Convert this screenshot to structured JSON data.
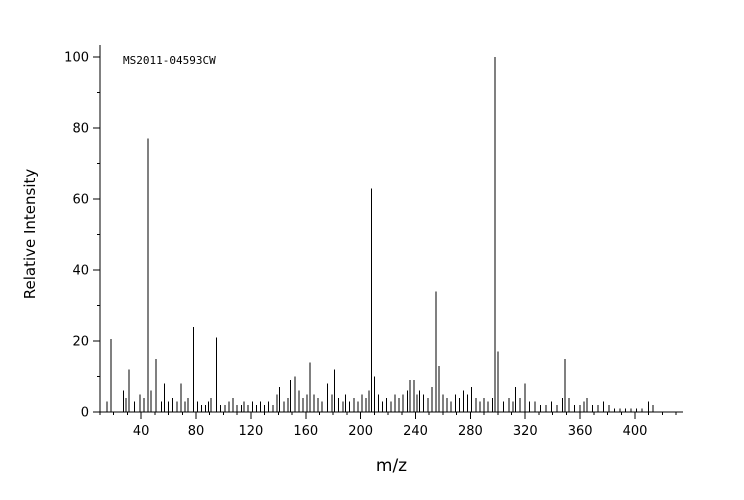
{
  "chart_data": {
    "type": "bar",
    "subtype": "mass-spectrum-sticks",
    "title": "MS2011-04593CW",
    "xlabel": "m/z",
    "ylabel": "Relative Intensity",
    "xlim": [
      10,
      435
    ],
    "ylim": [
      0,
      100
    ],
    "x_ticks_major": [
      40,
      80,
      120,
      160,
      200,
      240,
      280,
      320,
      360,
      400
    ],
    "x_tick_minor_step": 10,
    "y_ticks_major": [
      0,
      20,
      40,
      60,
      80,
      100
    ],
    "y_tick_minor_step": 10,
    "grid": false,
    "legend": null,
    "axis_color": "#000000",
    "peak_color": "#000000",
    "peaks": [
      [
        15,
        3
      ],
      [
        18,
        20.5
      ],
      [
        27,
        6
      ],
      [
        29,
        4
      ],
      [
        31,
        12
      ],
      [
        35,
        3
      ],
      [
        39,
        5
      ],
      [
        42,
        4
      ],
      [
        45,
        77
      ],
      [
        47,
        6
      ],
      [
        51,
        15
      ],
      [
        55,
        3
      ],
      [
        57,
        8
      ],
      [
        60,
        3
      ],
      [
        63,
        4
      ],
      [
        66,
        3
      ],
      [
        69,
        8
      ],
      [
        72,
        3
      ],
      [
        74,
        4
      ],
      [
        78,
        24
      ],
      [
        81,
        3
      ],
      [
        84,
        2
      ],
      [
        87,
        2
      ],
      [
        89,
        3
      ],
      [
        91,
        4
      ],
      [
        95,
        21
      ],
      [
        98,
        2
      ],
      [
        101,
        2
      ],
      [
        104,
        3
      ],
      [
        107,
        4
      ],
      [
        110,
        2
      ],
      [
        113,
        2
      ],
      [
        115,
        3
      ],
      [
        118,
        2
      ],
      [
        121,
        3
      ],
      [
        124,
        2
      ],
      [
        127,
        3
      ],
      [
        130,
        2
      ],
      [
        133,
        3
      ],
      [
        136,
        2
      ],
      [
        139,
        5
      ],
      [
        141,
        7
      ],
      [
        144,
        3
      ],
      [
        147,
        4
      ],
      [
        149,
        9
      ],
      [
        152,
        10
      ],
      [
        155,
        6
      ],
      [
        158,
        4
      ],
      [
        161,
        5
      ],
      [
        163,
        14
      ],
      [
        166,
        5
      ],
      [
        169,
        4
      ],
      [
        172,
        3
      ],
      [
        176,
        8
      ],
      [
        179,
        5
      ],
      [
        181,
        12
      ],
      [
        184,
        4
      ],
      [
        187,
        3
      ],
      [
        189,
        5
      ],
      [
        192,
        3
      ],
      [
        195,
        4
      ],
      [
        198,
        3
      ],
      [
        201,
        5
      ],
      [
        204,
        4
      ],
      [
        206,
        6
      ],
      [
        208,
        63
      ],
      [
        210,
        10
      ],
      [
        213,
        5
      ],
      [
        216,
        3
      ],
      [
        219,
        4
      ],
      [
        222,
        3
      ],
      [
        225,
        5
      ],
      [
        228,
        4
      ],
      [
        231,
        5
      ],
      [
        234,
        6
      ],
      [
        236,
        9
      ],
      [
        239,
        9
      ],
      [
        241,
        5
      ],
      [
        243,
        6
      ],
      [
        246,
        5
      ],
      [
        249,
        4
      ],
      [
        252,
        7
      ],
      [
        255,
        34
      ],
      [
        257,
        13
      ],
      [
        260,
        5
      ],
      [
        263,
        4
      ],
      [
        266,
        3
      ],
      [
        269,
        5
      ],
      [
        272,
        4
      ],
      [
        275,
        6
      ],
      [
        278,
        5
      ],
      [
        281,
        7
      ],
      [
        284,
        4
      ],
      [
        287,
        3
      ],
      [
        290,
        4
      ],
      [
        293,
        3
      ],
      [
        296,
        4
      ],
      [
        298,
        100
      ],
      [
        300,
        17
      ],
      [
        304,
        3
      ],
      [
        308,
        4
      ],
      [
        311,
        3
      ],
      [
        313,
        7
      ],
      [
        316,
        4
      ],
      [
        320,
        8
      ],
      [
        323,
        3
      ],
      [
        327,
        3
      ],
      [
        331,
        2
      ],
      [
        335,
        2
      ],
      [
        339,
        3
      ],
      [
        343,
        2
      ],
      [
        347,
        4
      ],
      [
        349,
        15
      ],
      [
        352,
        4
      ],
      [
        356,
        2
      ],
      [
        360,
        2
      ],
      [
        363,
        3
      ],
      [
        365,
        4
      ],
      [
        369,
        2
      ],
      [
        373,
        2
      ],
      [
        377,
        3
      ],
      [
        381,
        2
      ],
      [
        385,
        1
      ],
      [
        389,
        1
      ],
      [
        393,
        1
      ],
      [
        397,
        1
      ],
      [
        401,
        1
      ],
      [
        405,
        1
      ],
      [
        410,
        3
      ],
      [
        413,
        2
      ]
    ]
  }
}
